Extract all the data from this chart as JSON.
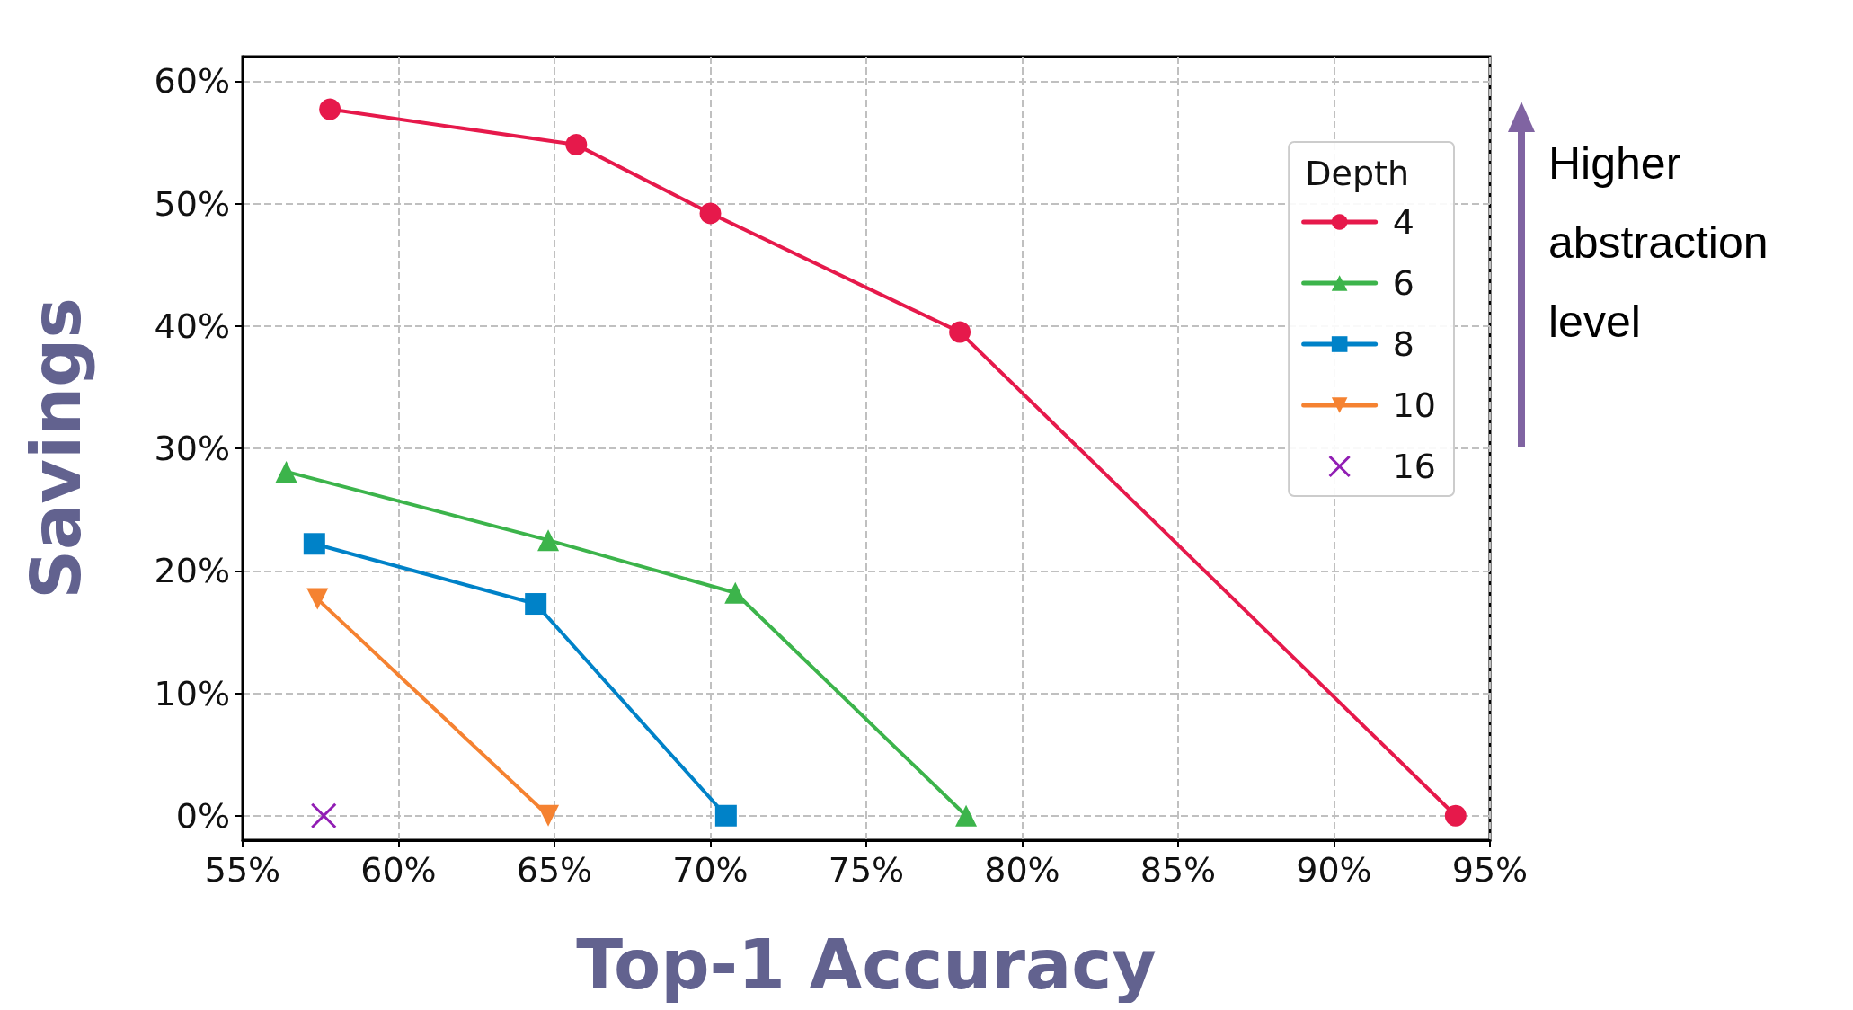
{
  "chart_data": {
    "type": "line",
    "xlabel": "Top-1 Accuracy",
    "ylabel": "Savings",
    "legend_title": "Depth",
    "legend": "top right",
    "grid": true,
    "line_style": "solid",
    "xlim": [
      55,
      95
    ],
    "xticks": [
      {
        "value": 55,
        "label": "55%"
      },
      {
        "value": 60,
        "label": "60%"
      },
      {
        "value": 65,
        "label": "65%"
      },
      {
        "value": 70,
        "label": "70%"
      },
      {
        "value": 75,
        "label": "75%"
      },
      {
        "value": 80,
        "label": "80%"
      },
      {
        "value": 85,
        "label": "85%"
      },
      {
        "value": 90,
        "label": "90%"
      },
      {
        "value": 95,
        "label": "95%"
      }
    ],
    "ylim": [
      -2,
      62
    ],
    "yticks": [
      {
        "value": 0,
        "label": "0%"
      },
      {
        "value": 10,
        "label": "10%"
      },
      {
        "value": 20,
        "label": "20%"
      },
      {
        "value": 30,
        "label": "30%"
      },
      {
        "value": 40,
        "label": "40%"
      },
      {
        "value": 50,
        "label": "50%"
      },
      {
        "value": 60,
        "label": "60%"
      }
    ],
    "annotations": [
      "Higher abstraction level"
    ],
    "series": [
      {
        "name": "4",
        "color": "#e6194b",
        "marker": "circle",
        "x": [
          57.8,
          65.7,
          70.0,
          78.0,
          93.9
        ],
        "values": [
          57.7,
          54.8,
          49.2,
          39.5,
          0
        ]
      },
      {
        "name": "6",
        "color": "#3cb44b",
        "marker": "triangle",
        "x": [
          56.4,
          64.8,
          70.8,
          78.2
        ],
        "values": [
          28.1,
          22.5,
          18.2,
          0
        ]
      },
      {
        "name": "8",
        "color": "#0082c8",
        "marker": "square",
        "x": [
          57.3,
          64.4,
          70.5
        ],
        "values": [
          22.2,
          17.3,
          0
        ]
      },
      {
        "name": "10",
        "color": "#f58231",
        "marker": "triangle-down",
        "x": [
          57.4,
          64.8
        ],
        "values": [
          17.7,
          0
        ]
      },
      {
        "name": "16",
        "color": "#911eb4",
        "marker": "cross",
        "x": [
          57.6
        ],
        "values": [
          0
        ]
      }
    ]
  }
}
